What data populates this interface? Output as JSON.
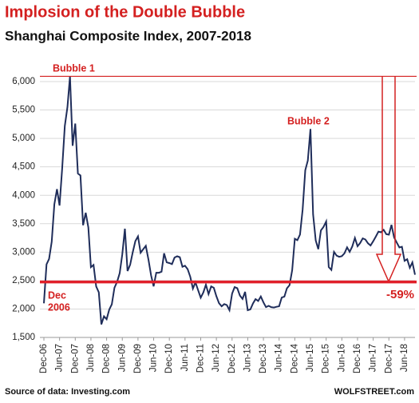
{
  "chart_data": {
    "type": "line",
    "title": "Implosion of the Double Bubble",
    "subtitle": "Shanghai Composite Index, 2007-2018",
    "source": "Source of data: Investing.com",
    "credit": "WOLFSTREET.com",
    "annotations": [
      {
        "text": "Bubble 1"
      },
      {
        "text": "Bubble 2"
      },
      {
        "text": "Dec"
      },
      {
        "text": "2006"
      },
      {
        "text": "-59%"
      }
    ],
    "reference_lines": [
      6092,
      2475
    ],
    "x": [
      "2006-12",
      "2007-01",
      "2007-02",
      "2007-03",
      "2007-04",
      "2007-05",
      "2007-06",
      "2007-07",
      "2007-08",
      "2007-09",
      "2007-10",
      "2007-11",
      "2007-12",
      "2008-01",
      "2008-02",
      "2008-03",
      "2008-04",
      "2008-05",
      "2008-06",
      "2008-07",
      "2008-08",
      "2008-09",
      "2008-10",
      "2008-11",
      "2008-12",
      "2009-01",
      "2009-02",
      "2009-03",
      "2009-04",
      "2009-05",
      "2009-06",
      "2009-07",
      "2009-08",
      "2009-09",
      "2009-10",
      "2009-11",
      "2009-12",
      "2010-01",
      "2010-02",
      "2010-03",
      "2010-04",
      "2010-05",
      "2010-06",
      "2010-07",
      "2010-08",
      "2010-09",
      "2010-10",
      "2010-11",
      "2010-12",
      "2011-01",
      "2011-02",
      "2011-03",
      "2011-04",
      "2011-05",
      "2011-06",
      "2011-07",
      "2011-08",
      "2011-09",
      "2011-10",
      "2011-11",
      "2011-12",
      "2012-01",
      "2012-02",
      "2012-03",
      "2012-04",
      "2012-05",
      "2012-06",
      "2012-07",
      "2012-08",
      "2012-09",
      "2012-10",
      "2012-11",
      "2012-12",
      "2013-01",
      "2013-02",
      "2013-03",
      "2013-04",
      "2013-05",
      "2013-06",
      "2013-07",
      "2013-08",
      "2013-09",
      "2013-10",
      "2013-11",
      "2013-12",
      "2014-01",
      "2014-02",
      "2014-03",
      "2014-04",
      "2014-05",
      "2014-06",
      "2014-07",
      "2014-08",
      "2014-09",
      "2014-10",
      "2014-11",
      "2014-12",
      "2015-01",
      "2015-02",
      "2015-03",
      "2015-04",
      "2015-05",
      "2015-06",
      "2015-07",
      "2015-08",
      "2015-09",
      "2015-10",
      "2015-11",
      "2015-12",
      "2016-01",
      "2016-02",
      "2016-03",
      "2016-04",
      "2016-05",
      "2016-06",
      "2016-07",
      "2016-08",
      "2016-09",
      "2016-10",
      "2016-11",
      "2016-12",
      "2017-01",
      "2017-02",
      "2017-03",
      "2017-04",
      "2017-05",
      "2017-06",
      "2017-07",
      "2017-08",
      "2017-09",
      "2017-10",
      "2017-11",
      "2017-12",
      "2018-01",
      "2018-02",
      "2018-03",
      "2018-04",
      "2018-05",
      "2018-06",
      "2018-07",
      "2018-08",
      "2018-09",
      "2018-10"
    ],
    "series": [
      {
        "name": "Shanghai Composite Index",
        "color": "#1f2d5a",
        "values": [
          2100,
          2786,
          2881,
          3183,
          3841,
          4109,
          3820,
          4471,
          5218,
          5552,
          6092,
          4871,
          5262,
          4383,
          4349,
          3473,
          3693,
          3433,
          2736,
          2776,
          2397,
          2293,
          1729,
          1871,
          1821,
          1991,
          2082,
          2373,
          2477,
          2632,
          2959,
          3412,
          2667,
          2779,
          2996,
          3195,
          3277,
          2989,
          3051,
          3110,
          2871,
          2592,
          2398,
          2638,
          2638,
          2656,
          2979,
          2820,
          2808,
          2790,
          2905,
          2928,
          2911,
          2743,
          2762,
          2701,
          2567,
          2359,
          2469,
          2333,
          2199,
          2292,
          2428,
          2262,
          2397,
          2373,
          2225,
          2103,
          2047,
          2086,
          2069,
          1980,
          2269,
          2385,
          2366,
          2237,
          2178,
          2301,
          1979,
          1994,
          2098,
          2174,
          2141,
          2220,
          2116,
          2033,
          2056,
          2033,
          2026,
          2039,
          2048,
          2202,
          2217,
          2364,
          2420,
          2683,
          3235,
          3210,
          3310,
          3748,
          4441,
          4612,
          5166,
          3664,
          3206,
          3053,
          3383,
          3445,
          3539,
          2738,
          2688,
          3004,
          2938,
          2917,
          2930,
          2979,
          3085,
          3005,
          3100,
          3250,
          3104,
          3159,
          3242,
          3223,
          3155,
          3117,
          3192,
          3273,
          3361,
          3349,
          3393,
          3317,
          3307,
          3480,
          3259,
          3169,
          3082,
          3095,
          2847,
          2876,
          2725,
          2821,
          2603
        ]
      }
    ],
    "xlim": [
      "2006-12",
      "2018-10"
    ],
    "xticks": [
      {
        "value": "2006-12",
        "label": "Dec-06"
      },
      {
        "value": "2007-06",
        "label": "Jun-07"
      },
      {
        "value": "2007-12",
        "label": "Dec-07"
      },
      {
        "value": "2008-06",
        "label": "Jun-08"
      },
      {
        "value": "2008-12",
        "label": "Dec-08"
      },
      {
        "value": "2009-06",
        "label": "Jun-09"
      },
      {
        "value": "2009-12",
        "label": "Dec-09"
      },
      {
        "value": "2010-06",
        "label": "Jun-10"
      },
      {
        "value": "2010-12",
        "label": "Dec-10"
      },
      {
        "value": "2011-06",
        "label": "Jun-11"
      },
      {
        "value": "2011-12",
        "label": "Dec-11"
      },
      {
        "value": "2012-06",
        "label": "Jun-12"
      },
      {
        "value": "2012-12",
        "label": "Dec-12"
      },
      {
        "value": "2013-06",
        "label": "Jun-13"
      },
      {
        "value": "2013-12",
        "label": "Dec-13"
      },
      {
        "value": "2014-06",
        "label": "Jun-14"
      },
      {
        "value": "2014-12",
        "label": "Dec-14"
      },
      {
        "value": "2015-06",
        "label": "Jun-15"
      },
      {
        "value": "2015-12",
        "label": "Dec-15"
      },
      {
        "value": "2016-06",
        "label": "Jun-16"
      },
      {
        "value": "2016-12",
        "label": "Dec-16"
      },
      {
        "value": "2017-06",
        "label": "Jun-17"
      },
      {
        "value": "2017-12",
        "label": "Dec-17"
      },
      {
        "value": "2018-06",
        "label": "Jun-18"
      }
    ],
    "ylim": [
      1500,
      6000
    ],
    "yticks": [
      {
        "value": 1500,
        "label": "1,500"
      },
      {
        "value": 2000,
        "label": "2,000"
      },
      {
        "value": 2500,
        "label": "2,500"
      },
      {
        "value": 3000,
        "label": "3,000"
      },
      {
        "value": 3500,
        "label": "3,500"
      },
      {
        "value": 4000,
        "label": "4,000"
      },
      {
        "value": 4500,
        "label": "4,500"
      },
      {
        "value": 5000,
        "label": "5,000"
      },
      {
        "value": 5500,
        "label": "5,500"
      },
      {
        "value": 6000,
        "label": "6,000"
      }
    ],
    "grid": true
  }
}
